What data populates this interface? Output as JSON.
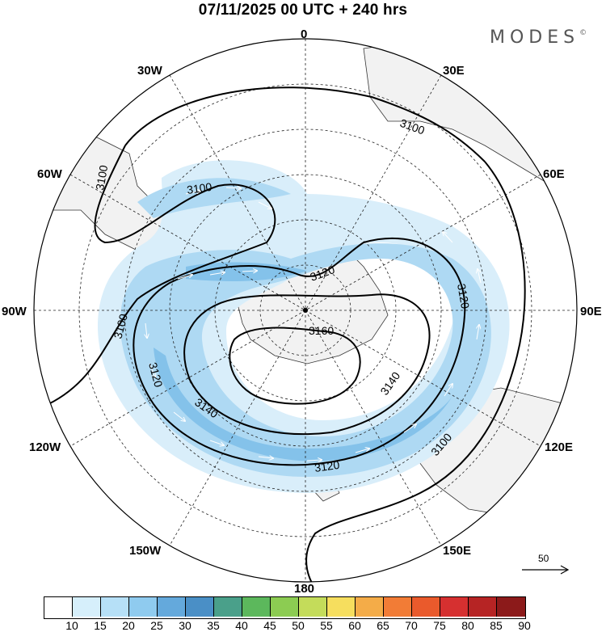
{
  "title": "07/11/2025  00 UTC  + 240 hrs",
  "brand": "MODES",
  "brand_mark": "©",
  "longitude_labels": [
    "0",
    "30E",
    "60E",
    "90E",
    "120E",
    "150E",
    "180",
    "150W",
    "120W",
    "90W",
    "60W",
    "30W"
  ],
  "contour_labels": [
    "3100",
    "3100",
    "3100",
    "3100",
    "3100",
    "3120",
    "3120",
    "3120",
    "3120",
    "3140",
    "3140",
    "3160"
  ],
  "vector_scale": {
    "label": "50"
  },
  "colorbar": {
    "ticks": [
      "10",
      "15",
      "20",
      "25",
      "30",
      "35",
      "40",
      "45",
      "50",
      "55",
      "60",
      "65",
      "70",
      "75",
      "80",
      "85",
      "90"
    ],
    "colors": [
      "#ffffff",
      "#d6effb",
      "#b6e0f7",
      "#8fcbef",
      "#64a9dc",
      "#4a8fc6",
      "#4aa08a",
      "#5cb85c",
      "#8ccc52",
      "#c4dc5a",
      "#f6de5e",
      "#f4ac48",
      "#f27c36",
      "#ea5a2c",
      "#d63030",
      "#b62424",
      "#8c1a1a"
    ]
  },
  "colors": {
    "land": "#f2f2f2",
    "jet_light": "#d9eefa",
    "jet_mid": "#aed9f3",
    "jet_strong": "#84c2ea",
    "jet_core": "#5fa6da"
  }
}
